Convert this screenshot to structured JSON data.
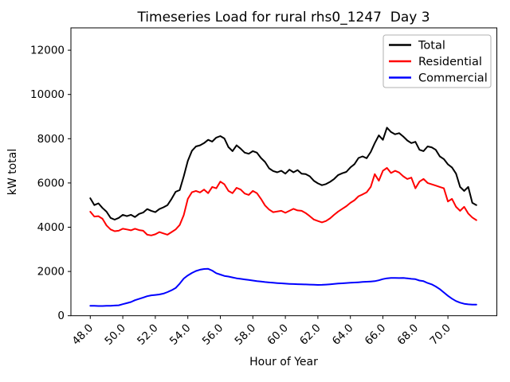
{
  "chart_data": {
    "type": "line",
    "title": "Timeseries Load for rural rhs0_1247  Day 3",
    "xlabel": "Hour of Year",
    "ylabel": "kW total",
    "xlim": [
      46.81,
      73.01
    ],
    "ylim": [
      0,
      13010
    ],
    "grid": false,
    "legend_position": "upper right",
    "x_ticks": [
      48,
      50,
      52,
      54,
      56,
      58,
      60,
      62,
      64,
      66,
      68,
      70
    ],
    "x_tick_labels": [
      "48.0",
      "50.0",
      "52.0",
      "54.0",
      "56.0",
      "58.0",
      "60.0",
      "62.0",
      "64.0",
      "66.0",
      "68.0",
      "70.0"
    ],
    "y_ticks": [
      0,
      2000,
      4000,
      6000,
      8000,
      10000,
      12000
    ],
    "y_tick_labels": [
      "0",
      "2000",
      "4000",
      "6000",
      "8000",
      "10000",
      "12000"
    ],
    "x_start": 48.0,
    "x_step": 0.25,
    "x_end": 71.75,
    "series": [
      {
        "name": "Total",
        "color": "#000000",
        "values": [
          5310,
          5000,
          5080,
          4870,
          4700,
          4420,
          4340,
          4420,
          4560,
          4500,
          4560,
          4460,
          4600,
          4660,
          4820,
          4740,
          4680,
          4820,
          4900,
          5000,
          5280,
          5600,
          5680,
          6300,
          7000,
          7450,
          7650,
          7700,
          7800,
          7950,
          7870,
          8050,
          8120,
          8010,
          7620,
          7440,
          7700,
          7550,
          7370,
          7320,
          7440,
          7370,
          7130,
          6950,
          6660,
          6540,
          6480,
          6550,
          6420,
          6600,
          6480,
          6580,
          6420,
          6400,
          6300,
          6100,
          5980,
          5900,
          5950,
          6050,
          6180,
          6360,
          6440,
          6500,
          6700,
          6850,
          7130,
          7200,
          7120,
          7400,
          7800,
          8150,
          7950,
          8500,
          8300,
          8200,
          8250,
          8100,
          7920,
          7800,
          7860,
          7500,
          7440,
          7650,
          7610,
          7500,
          7200,
          7080,
          6840,
          6700,
          6420,
          5820,
          5640,
          5820,
          5100,
          5000
        ]
      },
      {
        "name": "Residential",
        "color": "#ff0000",
        "values": [
          4700,
          4480,
          4500,
          4380,
          4080,
          3900,
          3820,
          3840,
          3930,
          3900,
          3860,
          3930,
          3870,
          3840,
          3660,
          3630,
          3680,
          3780,
          3720,
          3660,
          3780,
          3900,
          4100,
          4550,
          5280,
          5580,
          5640,
          5570,
          5700,
          5540,
          5820,
          5760,
          6060,
          5940,
          5640,
          5540,
          5780,
          5700,
          5520,
          5460,
          5640,
          5540,
          5280,
          4980,
          4800,
          4680,
          4710,
          4740,
          4650,
          4740,
          4830,
          4760,
          4740,
          4640,
          4500,
          4350,
          4280,
          4220,
          4280,
          4400,
          4560,
          4710,
          4830,
          4950,
          5100,
          5220,
          5400,
          5480,
          5580,
          5820,
          6400,
          6100,
          6550,
          6680,
          6450,
          6550,
          6470,
          6300,
          6180,
          6240,
          5760,
          6060,
          6180,
          6000,
          5940,
          5880,
          5820,
          5760,
          5160,
          5280,
          4920,
          4740,
          4920,
          4620,
          4440,
          4320
        ]
      },
      {
        "name": "Commercial",
        "color": "#0000ff",
        "values": [
          450,
          445,
          440,
          440,
          445,
          450,
          460,
          470,
          520,
          570,
          620,
          700,
          760,
          820,
          880,
          920,
          940,
          960,
          1000,
          1070,
          1150,
          1250,
          1450,
          1680,
          1820,
          1930,
          2020,
          2080,
          2110,
          2120,
          2040,
          1920,
          1860,
          1800,
          1770,
          1730,
          1690,
          1665,
          1640,
          1615,
          1590,
          1560,
          1545,
          1520,
          1505,
          1490,
          1475,
          1465,
          1450,
          1440,
          1432,
          1425,
          1418,
          1412,
          1405,
          1398,
          1392,
          1396,
          1405,
          1420,
          1439,
          1452,
          1465,
          1478,
          1489,
          1500,
          1512,
          1524,
          1536,
          1548,
          1561,
          1600,
          1655,
          1690,
          1705,
          1705,
          1700,
          1705,
          1690,
          1665,
          1650,
          1590,
          1561,
          1480,
          1417,
          1320,
          1201,
          1050,
          899,
          770,
          662,
          590,
          540,
          515,
          504,
          504
        ]
      }
    ],
    "legend_border_color": "#b0b0b0",
    "background_color": "#ffffff"
  }
}
